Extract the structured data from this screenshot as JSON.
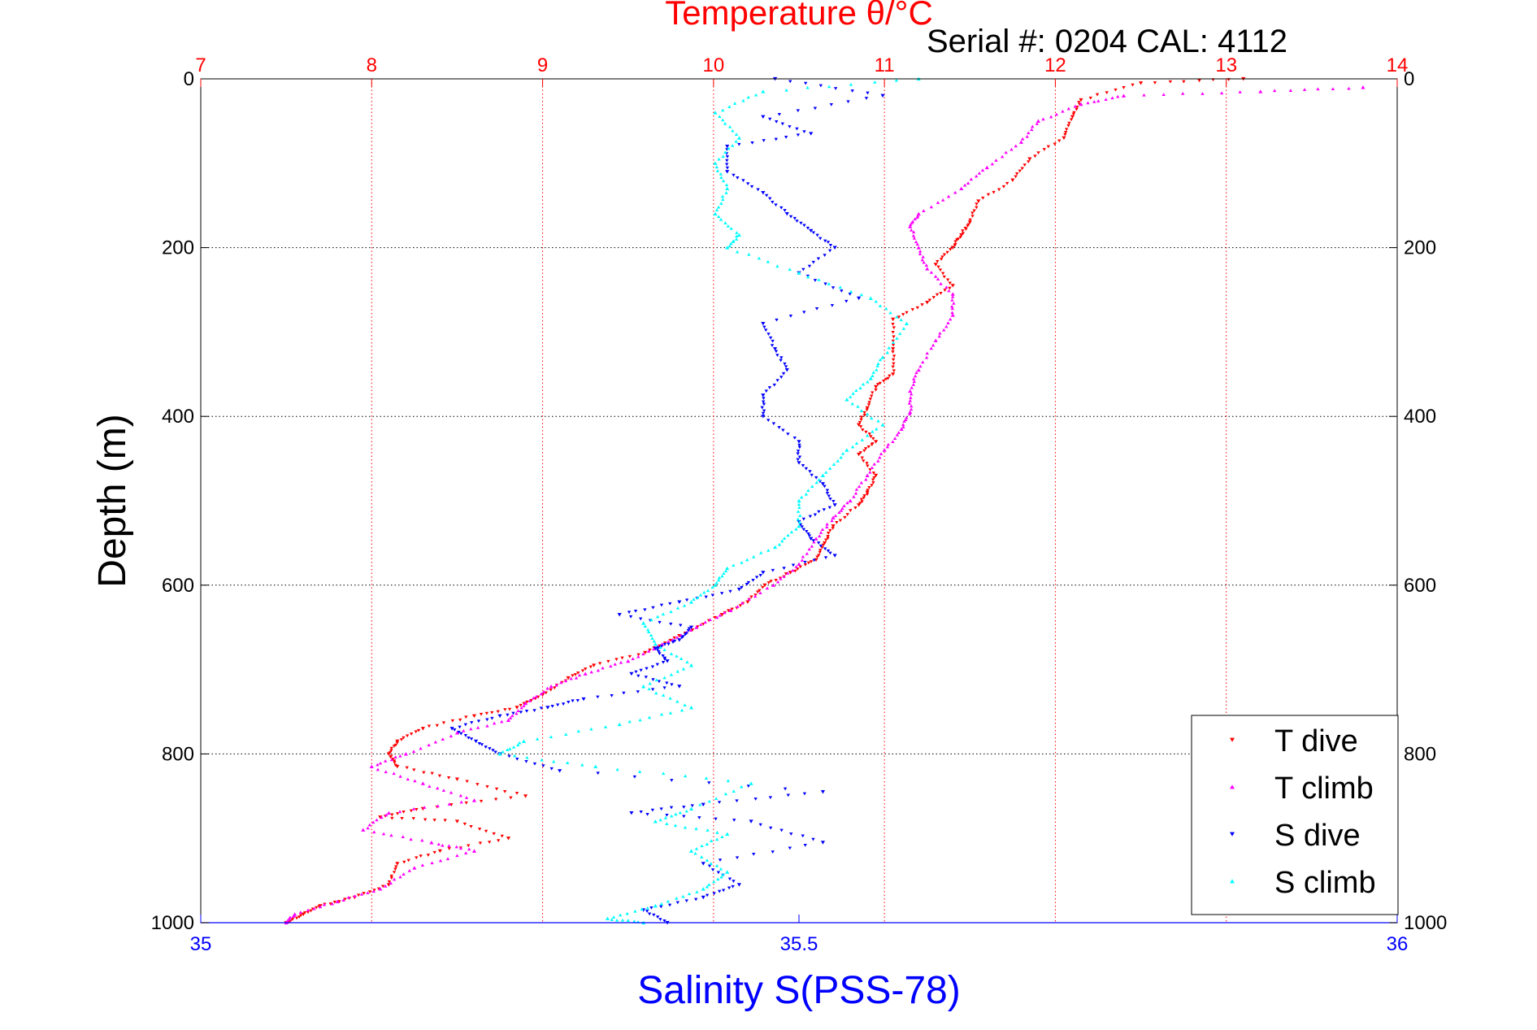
{
  "chart_data": {
    "type": "scatter",
    "title": "Temperature θ/°C",
    "subtitle": "Serial #: 0204  CAL: 4112",
    "ylabel": "Depth (m)",
    "xlabel_bottom": "Salinity S(PSS-78)",
    "y_axis": {
      "ylim": [
        0,
        1000
      ],
      "reversed": true,
      "ticks": [
        0,
        200,
        400,
        600,
        800,
        1000
      ],
      "tick_labels": [
        "0",
        "200",
        "400",
        "600",
        "800",
        "1000"
      ]
    },
    "temperature_axis": {
      "position": "top",
      "xlim": [
        7,
        14
      ],
      "ticks": [
        7,
        8,
        9,
        10,
        11,
        12,
        13,
        14
      ],
      "tick_labels": [
        "7",
        "8",
        "9",
        "10",
        "11",
        "12",
        "13",
        "14"
      ],
      "color": "#ff0000",
      "grid": true
    },
    "salinity_axis": {
      "position": "bottom",
      "xlim": [
        35,
        36
      ],
      "ticks": [
        35,
        35.5,
        36
      ],
      "tick_labels": [
        "35",
        "35.5",
        "36"
      ],
      "color": "#0000ff"
    },
    "grid": true,
    "legend_position": "bottom-right",
    "series": [
      {
        "name": "T dive",
        "axis": "temperature",
        "color": "#ff0000",
        "marker": "triangle-down",
        "points": [
          [
            13.1,
            0
          ],
          [
            12.5,
            5
          ],
          [
            12.15,
            25
          ],
          [
            12.1,
            45
          ],
          [
            12.05,
            70
          ],
          [
            11.85,
            95
          ],
          [
            11.75,
            120
          ],
          [
            11.55,
            145
          ],
          [
            11.5,
            170
          ],
          [
            11.45,
            185
          ],
          [
            11.4,
            200
          ],
          [
            11.3,
            220
          ],
          [
            11.4,
            245
          ],
          [
            11.25,
            265
          ],
          [
            11.05,
            285
          ],
          [
            11.05,
            320
          ],
          [
            11.05,
            350
          ],
          [
            10.95,
            365
          ],
          [
            10.9,
            390
          ],
          [
            10.85,
            410
          ],
          [
            10.95,
            430
          ],
          [
            10.85,
            445
          ],
          [
            10.95,
            470
          ],
          [
            10.9,
            490
          ],
          [
            10.85,
            505
          ],
          [
            10.7,
            530
          ],
          [
            10.65,
            550
          ],
          [
            10.6,
            570
          ],
          [
            10.45,
            585
          ],
          [
            10.3,
            600
          ],
          [
            10.2,
            620
          ],
          [
            10.05,
            635
          ],
          [
            9.8,
            660
          ],
          [
            9.6,
            680
          ],
          [
            9.3,
            695
          ],
          [
            9.15,
            710
          ],
          [
            9.0,
            730
          ],
          [
            8.85,
            745
          ],
          [
            8.6,
            755
          ],
          [
            8.3,
            770
          ],
          [
            8.15,
            785
          ],
          [
            8.1,
            800
          ],
          [
            8.15,
            815
          ],
          [
            8.5,
            830
          ],
          [
            8.9,
            850
          ],
          [
            8.3,
            865
          ],
          [
            8.05,
            875
          ],
          [
            8.5,
            880
          ],
          [
            8.8,
            900
          ],
          [
            8.4,
            915
          ],
          [
            8.15,
            930
          ],
          [
            8.1,
            955
          ],
          [
            7.9,
            970
          ],
          [
            7.7,
            980
          ],
          [
            7.6,
            990
          ],
          [
            7.5,
            1000
          ]
        ]
      },
      {
        "name": "T climb",
        "axis": "temperature",
        "color": "#ff00ff",
        "marker": "triangle-up",
        "points": [
          [
            13.8,
            10
          ],
          [
            13.2,
            15
          ],
          [
            12.4,
            20
          ],
          [
            12.15,
            30
          ],
          [
            11.9,
            50
          ],
          [
            11.8,
            75
          ],
          [
            11.6,
            105
          ],
          [
            11.45,
            130
          ],
          [
            11.2,
            160
          ],
          [
            11.15,
            175
          ],
          [
            11.2,
            200
          ],
          [
            11.25,
            225
          ],
          [
            11.4,
            255
          ],
          [
            11.4,
            280
          ],
          [
            11.3,
            310
          ],
          [
            11.2,
            345
          ],
          [
            11.15,
            370
          ],
          [
            11.15,
            395
          ],
          [
            11.1,
            415
          ],
          [
            11.0,
            440
          ],
          [
            10.9,
            470
          ],
          [
            10.8,
            500
          ],
          [
            10.7,
            520
          ],
          [
            10.6,
            545
          ],
          [
            10.5,
            575
          ],
          [
            10.35,
            600
          ],
          [
            10.1,
            630
          ],
          [
            9.9,
            650
          ],
          [
            9.7,
            670
          ],
          [
            9.5,
            690
          ],
          [
            9.25,
            705
          ],
          [
            9.05,
            720
          ],
          [
            8.9,
            740
          ],
          [
            8.8,
            760
          ],
          [
            8.5,
            775
          ],
          [
            8.2,
            800
          ],
          [
            8.0,
            815
          ],
          [
            8.3,
            835
          ],
          [
            8.6,
            855
          ],
          [
            8.1,
            870
          ],
          [
            7.95,
            890
          ],
          [
            8.35,
            905
          ],
          [
            8.6,
            915
          ],
          [
            8.25,
            935
          ],
          [
            8.05,
            960
          ],
          [
            7.8,
            975
          ],
          [
            7.55,
            990
          ],
          [
            7.5,
            1000
          ]
        ]
      },
      {
        "name": "S dive",
        "axis": "salinity",
        "color": "#0000ff",
        "marker": "triangle-down",
        "points": [
          [
            35.48,
            0
          ],
          [
            35.57,
            20
          ],
          [
            35.47,
            45
          ],
          [
            35.51,
            65
          ],
          [
            35.44,
            80
          ],
          [
            35.44,
            110
          ],
          [
            35.47,
            135
          ],
          [
            35.49,
            160
          ],
          [
            35.51,
            180
          ],
          [
            35.53,
            200
          ],
          [
            35.5,
            230
          ],
          [
            35.55,
            260
          ],
          [
            35.47,
            290
          ],
          [
            35.48,
            320
          ],
          [
            35.49,
            345
          ],
          [
            35.47,
            375
          ],
          [
            35.47,
            400
          ],
          [
            35.5,
            430
          ],
          [
            35.5,
            455
          ],
          [
            35.52,
            480
          ],
          [
            35.53,
            505
          ],
          [
            35.5,
            525
          ],
          [
            35.51,
            545
          ],
          [
            35.53,
            565
          ],
          [
            35.47,
            585
          ],
          [
            35.45,
            605
          ],
          [
            35.4,
            620
          ],
          [
            35.35,
            635
          ],
          [
            35.41,
            650
          ],
          [
            35.4,
            665
          ],
          [
            35.38,
            675
          ],
          [
            35.39,
            690
          ],
          [
            35.36,
            705
          ],
          [
            35.4,
            720
          ],
          [
            35.32,
            735
          ],
          [
            35.29,
            745
          ],
          [
            35.25,
            755
          ],
          [
            35.21,
            770
          ],
          [
            35.23,
            785
          ],
          [
            35.25,
            800
          ],
          [
            35.3,
            820
          ],
          [
            35.52,
            845
          ],
          [
            35.42,
            860
          ],
          [
            35.36,
            870
          ],
          [
            35.46,
            880
          ],
          [
            35.52,
            905
          ],
          [
            35.42,
            930
          ],
          [
            35.45,
            955
          ],
          [
            35.42,
            970
          ],
          [
            35.37,
            985
          ],
          [
            35.39,
            1000
          ]
        ]
      },
      {
        "name": "S climb",
        "axis": "salinity",
        "color": "#00ffff",
        "marker": "triangle-up",
        "points": [
          [
            35.6,
            0
          ],
          [
            35.47,
            15
          ],
          [
            35.43,
            40
          ],
          [
            35.45,
            70
          ],
          [
            35.43,
            100
          ],
          [
            35.44,
            130
          ],
          [
            35.43,
            160
          ],
          [
            35.45,
            185
          ],
          [
            35.44,
            200
          ],
          [
            35.5,
            230
          ],
          [
            35.56,
            260
          ],
          [
            35.59,
            290
          ],
          [
            35.57,
            330
          ],
          [
            35.56,
            355
          ],
          [
            35.54,
            380
          ],
          [
            35.57,
            410
          ],
          [
            35.54,
            440
          ],
          [
            35.52,
            470
          ],
          [
            35.5,
            500
          ],
          [
            35.5,
            530
          ],
          [
            35.48,
            555
          ],
          [
            35.44,
            580
          ],
          [
            35.43,
            600
          ],
          [
            35.41,
            620
          ],
          [
            35.37,
            645
          ],
          [
            35.38,
            670
          ],
          [
            35.41,
            695
          ],
          [
            35.37,
            720
          ],
          [
            35.41,
            745
          ],
          [
            35.35,
            765
          ],
          [
            35.27,
            785
          ],
          [
            35.25,
            800
          ],
          [
            35.33,
            815
          ],
          [
            35.46,
            835
          ],
          [
            35.41,
            865
          ],
          [
            35.38,
            880
          ],
          [
            35.44,
            895
          ],
          [
            35.41,
            915
          ],
          [
            35.44,
            940
          ],
          [
            35.42,
            960
          ],
          [
            35.38,
            980
          ],
          [
            35.34,
            995
          ],
          [
            35.37,
            1000
          ]
        ]
      }
    ]
  }
}
